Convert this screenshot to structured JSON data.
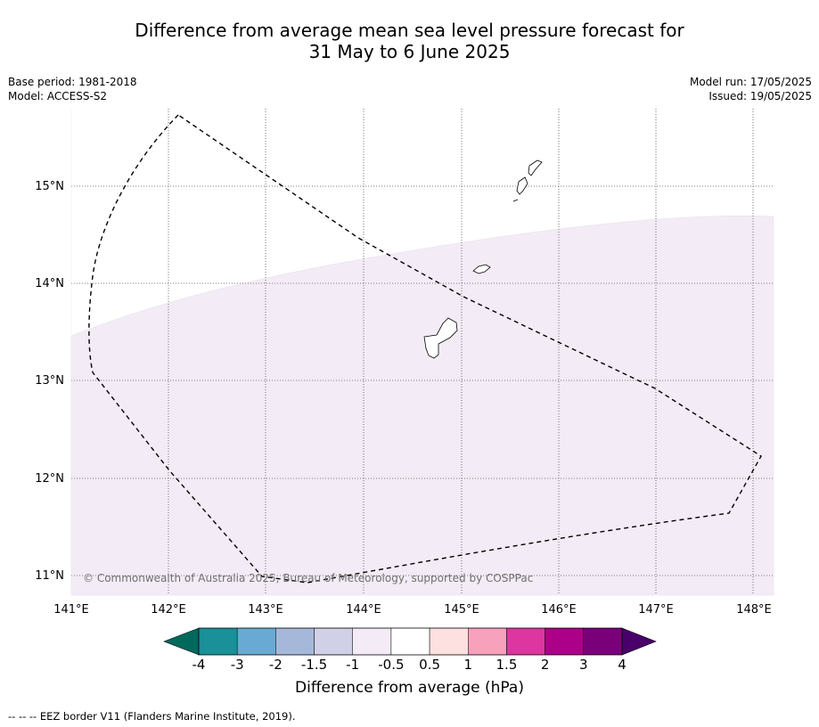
{
  "title": {
    "line1": "Difference from average mean sea level pressure forecast for",
    "line2": "31 May to 6 June 2025"
  },
  "meta": {
    "base_period": "Base period: 1981-2018",
    "model": "Model: ACCESS-S2",
    "model_run": "Model run: 17/05/2025",
    "issued": "Issued: 19/05/2025"
  },
  "map": {
    "lon_labels": [
      "141°E",
      "142°E",
      "143°E",
      "144°E",
      "145°E",
      "146°E",
      "147°E",
      "148°E"
    ],
    "lat_labels": [
      "15°N",
      "14°N",
      "13°N",
      "12°N",
      "11°N"
    ],
    "copyright": "© Commonwealth of Australia 2025, Bureau of Meteorology, supported by COSPPac",
    "shaded_category": "-1 to -0.5",
    "shaded_color": "#f3ebf5"
  },
  "colorbar": {
    "title": "Difference from average (hPa)",
    "tick_labels": [
      "-4",
      "-3",
      "-2",
      "-1.5",
      "-1",
      "-0.5",
      "0.5",
      "1",
      "1.5",
      "2",
      "3",
      "4"
    ],
    "colors": {
      "under": "#00695c",
      "bins": [
        "#1a9098",
        "#68aad3",
        "#a6b8da",
        "#d0d0e6",
        "#f3ebf5",
        "#ffffff",
        "#fde0e0",
        "#f8a1bd",
        "#dd36a0",
        "#ad0088",
        "#7a0079"
      ],
      "over": "#4a006a"
    }
  },
  "footer": {
    "legend_line": "--  --  -- EEZ border V11 (Flanders Marine Institute, 2019)."
  }
}
